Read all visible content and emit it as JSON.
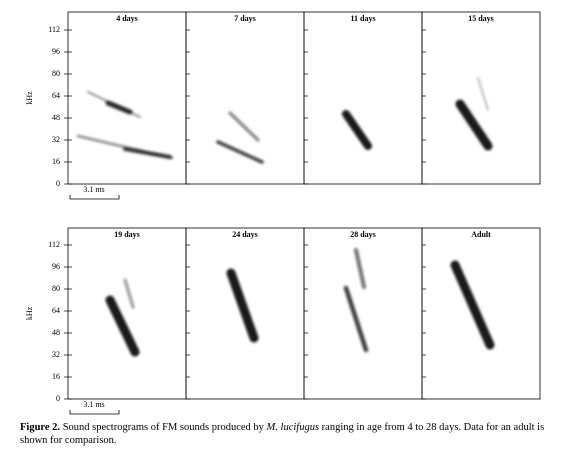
{
  "panels": [
    {
      "title": "4 days"
    },
    {
      "title": "7 days"
    },
    {
      "title": "11 days"
    },
    {
      "title": "15 days"
    },
    {
      "title": "19 days"
    },
    {
      "title": "24 days"
    },
    {
      "title": "28 days"
    },
    {
      "title": "Adult"
    }
  ],
  "y_axis": {
    "label": "kHz",
    "ticks": [
      0,
      16,
      32,
      48,
      64,
      80,
      96,
      112
    ]
  },
  "scale_bar": "3.1 ms",
  "caption": {
    "label": "Figure 2.",
    "text_before": " Sound spectrograms of FM sounds produced by ",
    "species": "M. lucifugus",
    "text_after": " ranging in age from 4 to 28 days. Data for an adult is shown for comparison."
  }
}
